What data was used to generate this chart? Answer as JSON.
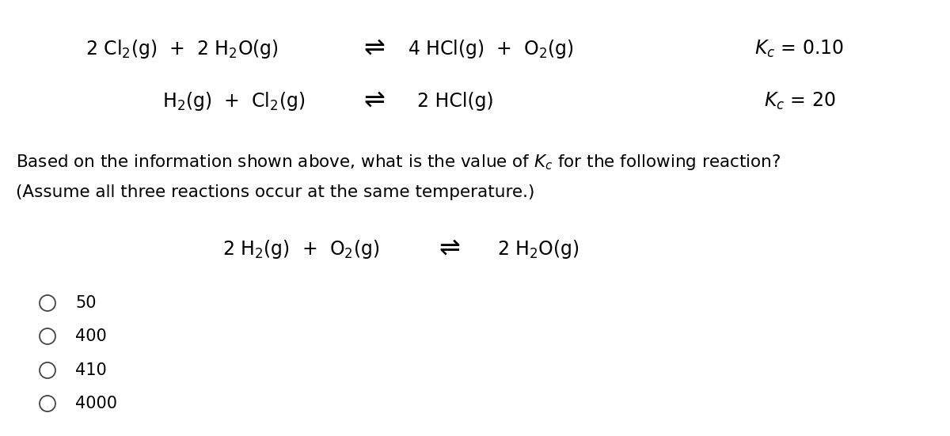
{
  "bg_color": "#ffffff",
  "text_color": "#000000",
  "figsize": [
    12.0,
    5.51
  ],
  "dpi": 100,
  "choices": [
    "50",
    "400",
    "410",
    "4000"
  ],
  "fs_eq": 17,
  "fs_kc": 17,
  "fs_q": 15.5,
  "fs_choice": 15
}
